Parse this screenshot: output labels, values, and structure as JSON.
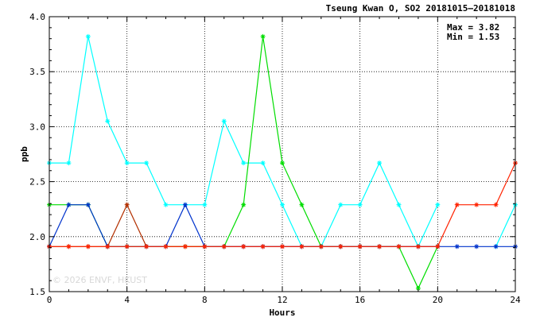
{
  "chart_data": {
    "type": "line",
    "title": "Tseung Kwan O, SO2 20181015—20181018",
    "stats": {
      "max_label": "Max = 3.82",
      "min_label": "Min = 1.53"
    },
    "xlabel": "Hours",
    "ylabel": "ppb",
    "xlim": [
      0,
      24
    ],
    "ylim": [
      1.5,
      4.0
    ],
    "x_ticks": [
      0,
      4,
      8,
      12,
      16,
      20,
      24
    ],
    "x_tick_labels": [
      "0",
      "4",
      "8",
      "12",
      "16",
      "20",
      "24"
    ],
    "y_ticks": [
      1.5,
      2.0,
      2.5,
      3.0,
      3.5,
      4.0
    ],
    "y_tick_labels": [
      "1.5",
      "2.0",
      "2.5",
      "3.0",
      "3.5",
      "4.0"
    ],
    "grid": true,
    "watermark": "© 2026 ENVF, HKUST",
    "x": [
      0,
      1,
      2,
      3,
      4,
      5,
      6,
      7,
      8,
      9,
      10,
      11,
      12,
      13,
      14,
      15,
      16,
      17,
      18,
      19,
      20,
      21,
      22,
      23,
      24
    ],
    "series": [
      {
        "color": "#00ffff",
        "values": [
          2.67,
          2.67,
          3.82,
          3.05,
          2.67,
          2.67,
          2.29,
          2.29,
          2.29,
          3.05,
          2.67,
          2.67,
          2.29,
          1.91,
          1.91,
          2.29,
          2.29,
          2.67,
          2.29,
          1.91,
          2.29,
          null,
          null,
          1.91,
          2.29
        ]
      },
      {
        "color": "#00dd00",
        "values": [
          2.29,
          2.29,
          2.29,
          1.91,
          1.91,
          1.91,
          1.91,
          1.91,
          1.91,
          1.91,
          2.29,
          3.82,
          2.67,
          2.29,
          1.91,
          1.91,
          1.91,
          1.91,
          1.91,
          1.53,
          1.91,
          null,
          null,
          null,
          null
        ]
      },
      {
        "color": "#b33000",
        "values": [
          1.91,
          1.91,
          1.91,
          1.91,
          2.29,
          1.91,
          1.91,
          1.91,
          1.91,
          1.91,
          1.91,
          1.91,
          1.91,
          1.91,
          1.91,
          1.91,
          1.91,
          1.91,
          1.91,
          1.91,
          1.91,
          null,
          null,
          null,
          null
        ]
      },
      {
        "color": "#0033cc",
        "values": [
          1.91,
          2.29,
          2.29,
          1.91,
          1.91,
          1.91,
          1.91,
          2.29,
          1.91,
          1.91,
          1.91,
          1.91,
          1.91,
          1.91,
          1.91,
          1.91,
          1.91,
          1.91,
          1.91,
          1.91,
          1.91,
          1.91,
          1.91,
          1.91,
          1.91
        ]
      },
      {
        "color": "#ff2200",
        "values": [
          1.91,
          1.91,
          1.91,
          1.91,
          1.91,
          1.91,
          1.91,
          1.91,
          1.91,
          1.91,
          1.91,
          1.91,
          1.91,
          1.91,
          1.91,
          1.91,
          1.91,
          1.91,
          1.91,
          1.91,
          1.91,
          2.29,
          2.29,
          2.29,
          2.67
        ]
      }
    ]
  }
}
